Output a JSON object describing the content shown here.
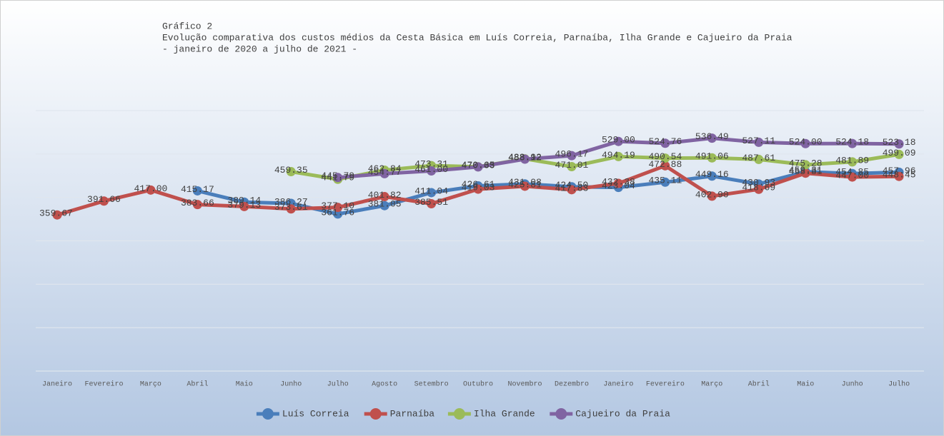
{
  "chart_data": {
    "type": "line",
    "title": "Gráfico 2",
    "subtitle": [
      "Evolução comparativa dos custos médios da Cesta Básica em Luís Correia, Parnaíba, Ilha Grande e Cajueiro da Praia",
      "- janeiro de 2020 a julho de 2021 -"
    ],
    "categories": [
      "Janeiro",
      "Fevereiro",
      "Março",
      "Abril",
      "Maio",
      "Junho",
      "Julho",
      "Agosto",
      "Setembro",
      "Outubro",
      "Novembro",
      "Dezembro",
      "Janeiro",
      "Fevereiro",
      "Março",
      "Abril",
      "Maio",
      "Junho",
      "Julho"
    ],
    "ylim": [
      0,
      600
    ],
    "yticks": [
      0,
      100,
      200,
      300,
      400,
      500,
      600
    ],
    "grid": true,
    "legend": "bottom",
    "series": [
      {
        "name": "Luís Correia",
        "color": "#4a7ebb",
        "values": [
          null,
          null,
          null,
          415.17,
          389.14,
          386.27,
          361.76,
          381.05,
          411.04,
          426.61,
          431.08,
          424.5,
          423.04,
          435.11,
          449.16,
          430.93,
          459.31,
          454.85,
          457.96
        ],
        "value_labels": [
          null,
          null,
          null,
          "415.17",
          "389.14",
          "386.27",
          "361.76",
          "381.05",
          "411.04",
          "426.61",
          "431.08",
          "424.50",
          "423.04",
          "435.11",
          "449.16",
          "430.93",
          "459.31",
          "454.85",
          "457.96"
        ]
      },
      {
        "name": "Parnaíba",
        "color": "#c0504d",
        "values": [
          359.67,
          391.66,
          417.0,
          383.66,
          379.13,
          373.61,
          377.1,
          401.82,
          385.51,
          419.03,
          425.81,
          417.83,
          432.38,
          472.88,
          402.9,
          418.69,
          455.81,
          447.0,
          448.45
        ],
        "value_labels": [
          "359.67",
          "391.66",
          "417.00",
          "383.66",
          "379.13",
          "373.61",
          "377.10",
          "401.82",
          "385.51",
          "419.03",
          "425.81",
          "417.83",
          "432.38",
          "472.88",
          "402.90",
          "418.69",
          "455.81",
          "447.00",
          "448.45"
        ]
      },
      {
        "name": "Ilha Grande",
        "color": "#9bbb59",
        "values": [
          null,
          null,
          null,
          null,
          null,
          459.35,
          441.79,
          462.84,
          473.31,
          470.65,
          488.92,
          471.01,
          494.19,
          490.54,
          491.06,
          487.61,
          475.28,
          481.89,
          499.09
        ],
        "value_labels": [
          null,
          null,
          null,
          null,
          null,
          "459.35",
          "441.79",
          "462.84",
          "473.31",
          "470.65",
          "488.92",
          "471.01",
          "494.19",
          "490.54",
          "491.06",
          "487.61",
          "475.28",
          "481.89",
          "499.09"
        ]
      },
      {
        "name": "Cajueiro da Praia",
        "color": "#8064a2",
        "values": [
          null,
          null,
          null,
          null,
          null,
          null,
          445.79,
          454.77,
          461.0,
          470.33,
          488.12,
          496.17,
          529.0,
          524.76,
          536.49,
          527.11,
          524.0,
          524.18,
          523.18
        ],
        "value_labels": [
          null,
          null,
          null,
          null,
          null,
          null,
          "445.79",
          "454.77",
          "461.00",
          "470.33",
          "488.12",
          "496.17",
          "529.00",
          "524.76",
          "536.49",
          "527.11",
          "524.00",
          "524.18",
          "523.18"
        ]
      }
    ]
  }
}
